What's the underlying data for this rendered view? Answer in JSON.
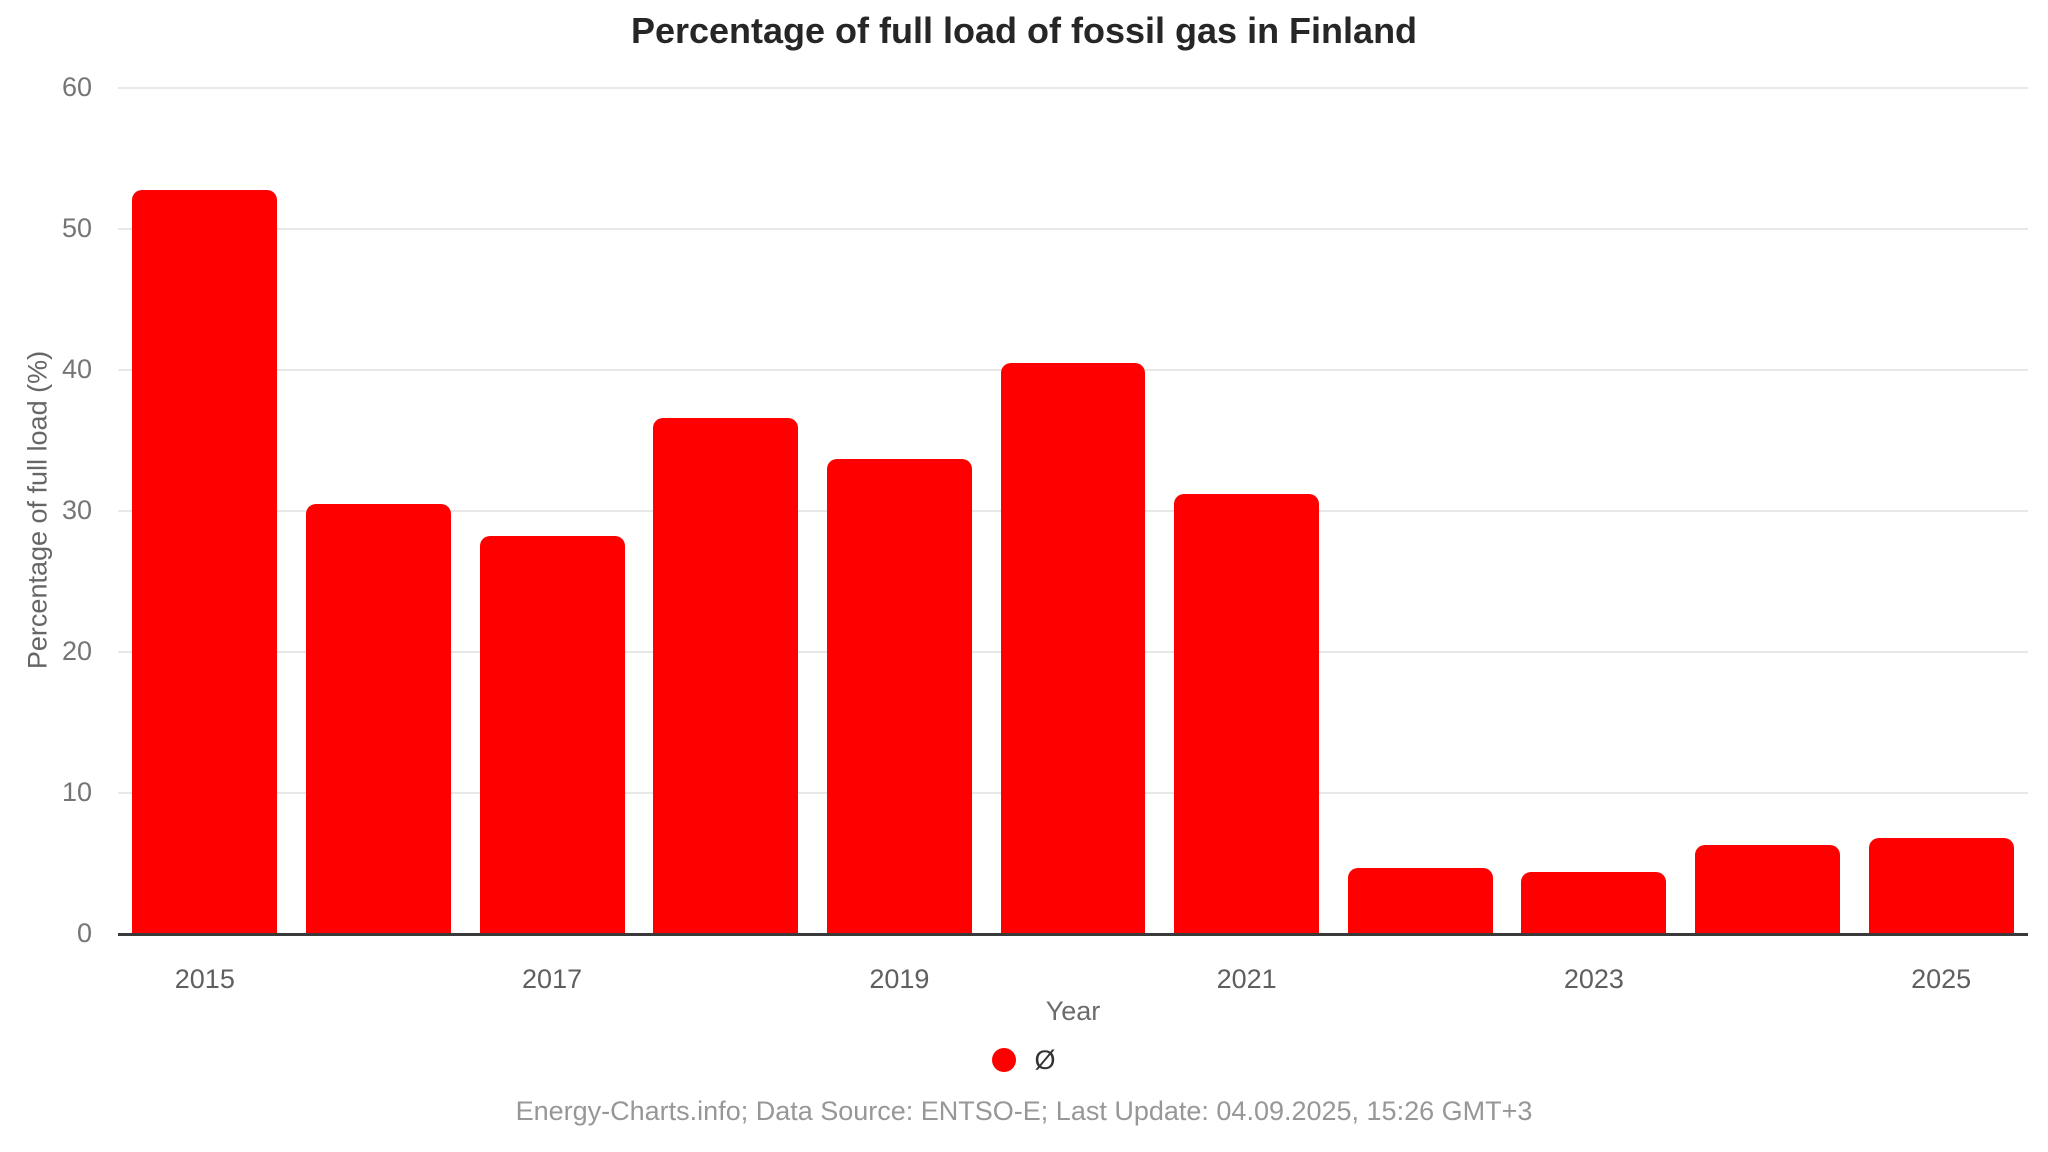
{
  "header": {
    "title": "Percentage of full load of fossil gas in Finland"
  },
  "chart_data": {
    "type": "bar",
    "title": "Percentage of full load of fossil gas in Finland",
    "xlabel": "Year",
    "ylabel": "Percentage of full load (%)",
    "categories": [
      "2015",
      "2016",
      "2017",
      "2018",
      "2019",
      "2020",
      "2021",
      "2022",
      "2023",
      "2024",
      "2025"
    ],
    "values": [
      52.8,
      30.5,
      28.2,
      36.6,
      33.7,
      40.5,
      31.2,
      4.7,
      4.4,
      6.3,
      6.8
    ],
    "ylim": [
      0,
      60
    ],
    "yticks": [
      0,
      10,
      20,
      30,
      40,
      50,
      60
    ],
    "xticks_shown": [
      "2015",
      "2017",
      "2019",
      "2021",
      "2023",
      "2025"
    ],
    "grid": true,
    "bar_color": "#ff0000",
    "legend": {
      "position": "bottom-center",
      "items": [
        {
          "label": "Ø",
          "color": "#ff0000"
        }
      ]
    }
  },
  "footer": {
    "text": "Energy-Charts.info; Data Source: ENTSO-E; Last Update: 04.09.2025, 15:26 GMT+3"
  }
}
